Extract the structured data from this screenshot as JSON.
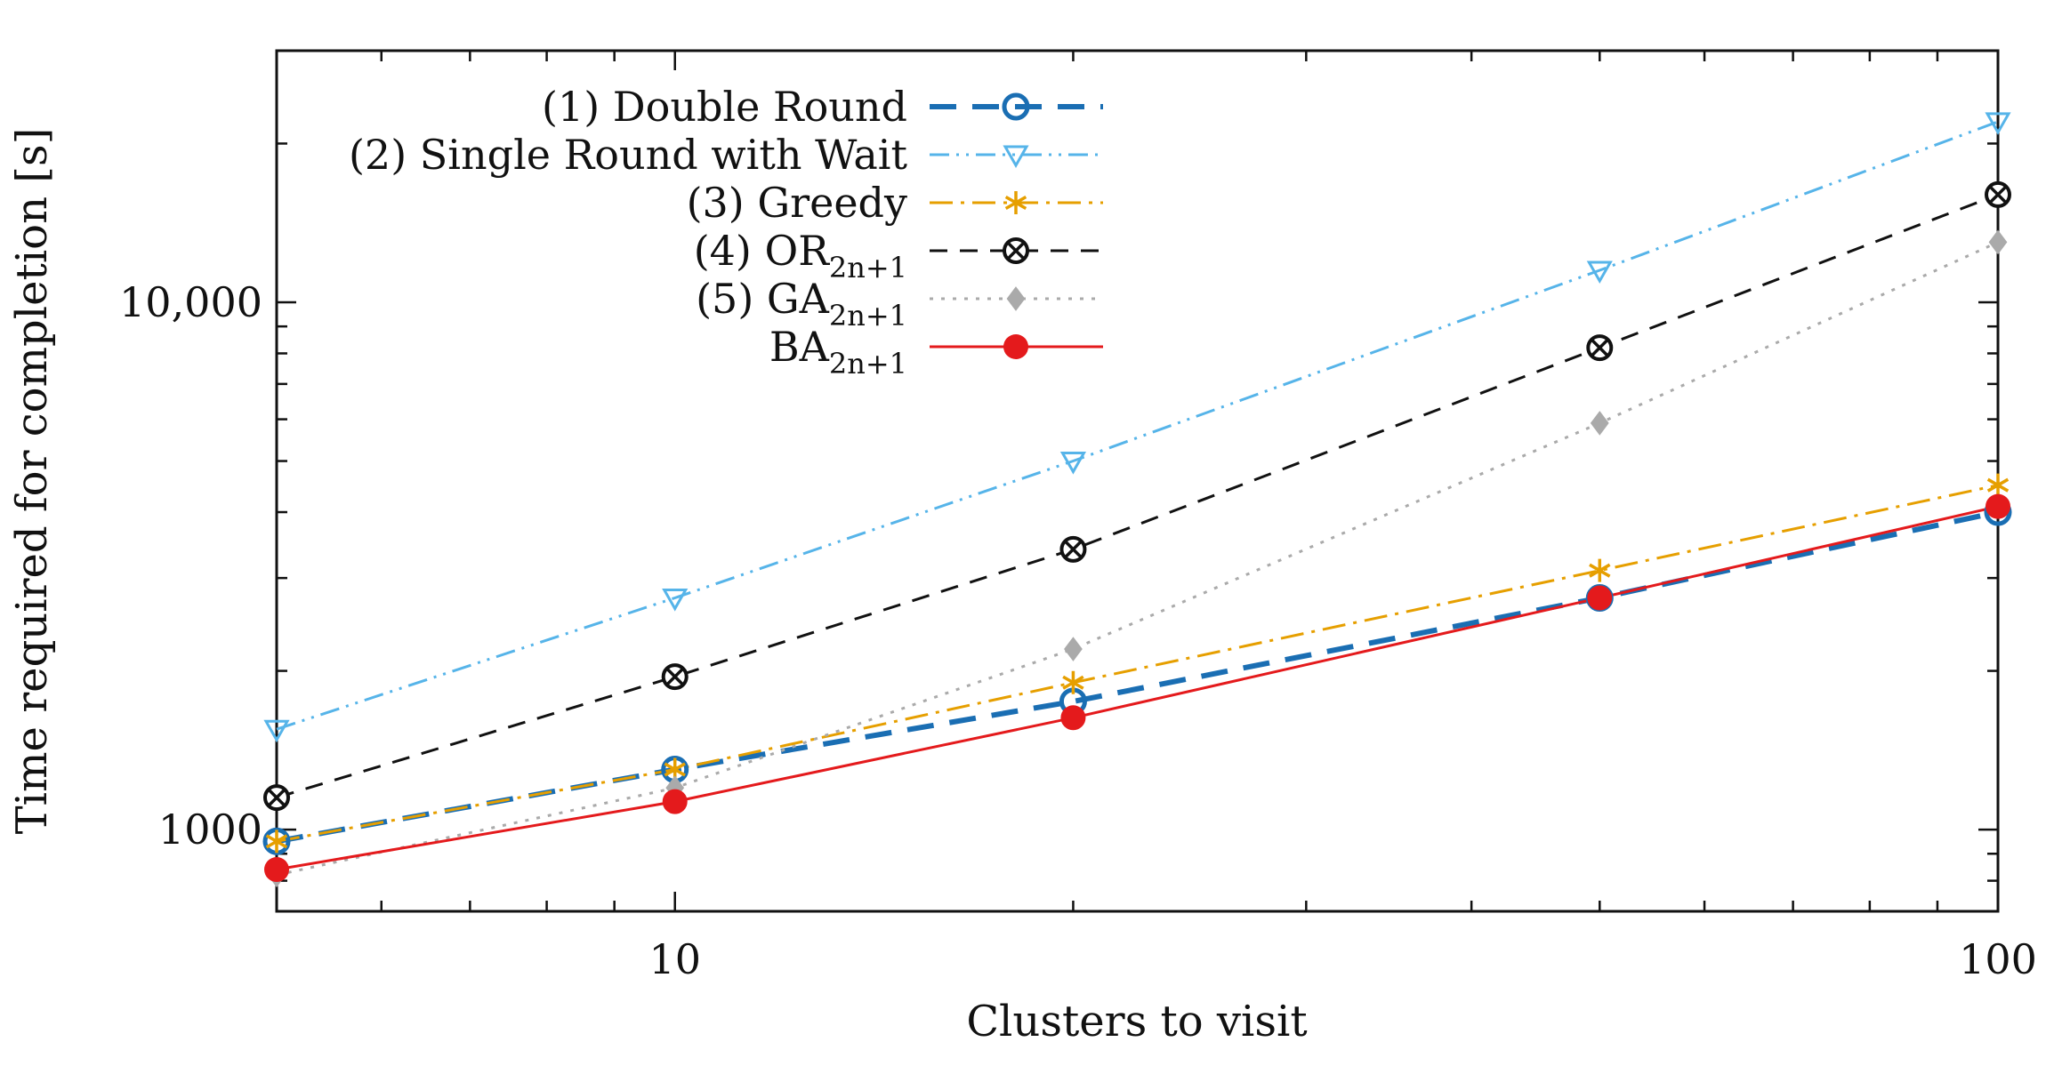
{
  "chart_data": {
    "type": "line",
    "title": "",
    "xlabel": "Clusters to visit",
    "ylabel": "Time required for completion [s]",
    "x_scale": "log",
    "y_scale": "log",
    "xlim": [
      5,
      100
    ],
    "ylim": [
      700,
      30000
    ],
    "x_tick_labels": [
      {
        "value": 10,
        "label": "10"
      },
      {
        "value": 100,
        "label": "100"
      }
    ],
    "y_tick_labels": [
      {
        "value": 1000,
        "label": "1000"
      },
      {
        "value": 10000,
        "label": "10,000"
      }
    ],
    "legend_position": "top-center",
    "x": [
      5,
      10,
      20,
      50,
      100
    ],
    "series": [
      {
        "name": "(1) Double Round",
        "label_main": "(1) Double Round",
        "label_sub": "",
        "color": "#1a6eb3",
        "marker": "circle-open",
        "line": "bold-dashed",
        "values": [
          950,
          1300,
          1750,
          2750,
          4000
        ]
      },
      {
        "name": "(2) Single Round with Wait",
        "label_main": "(2) Single Round with Wait",
        "label_sub": "",
        "color": "#56b4e9",
        "marker": "triangle-down-open",
        "line": "dash-dot-dot",
        "values": [
          1550,
          2750,
          5000,
          11500,
          22000
        ]
      },
      {
        "name": "(3) Greedy",
        "label_main": "(3) Greedy",
        "label_sub": "",
        "color": "#e69f00",
        "marker": "star",
        "line": "dash-dot",
        "values": [
          950,
          1300,
          1900,
          3100,
          4500
        ]
      },
      {
        "name": "(4) OR_{2n+1}",
        "label_main": "(4) OR",
        "label_sub": "2n+1",
        "color": "#111111",
        "marker": "circle-x",
        "line": "dashed",
        "values": [
          1150,
          1950,
          3400,
          8200,
          16000
        ]
      },
      {
        "name": "(5) GA_{2n+1}",
        "label_main": "(5) GA",
        "label_sub": "2n+1",
        "color": "#aaaaaa",
        "marker": "diamond",
        "line": "dotted",
        "values": [
          820,
          1200,
          2200,
          5900,
          13000
        ]
      },
      {
        "name": "BA_{2n+1}",
        "label_main": "BA",
        "label_sub": "2n+1",
        "color": "#e41a1c",
        "marker": "circle-filled",
        "line": "solid",
        "values": [
          840,
          1130,
          1630,
          2750,
          4100
        ]
      }
    ]
  }
}
